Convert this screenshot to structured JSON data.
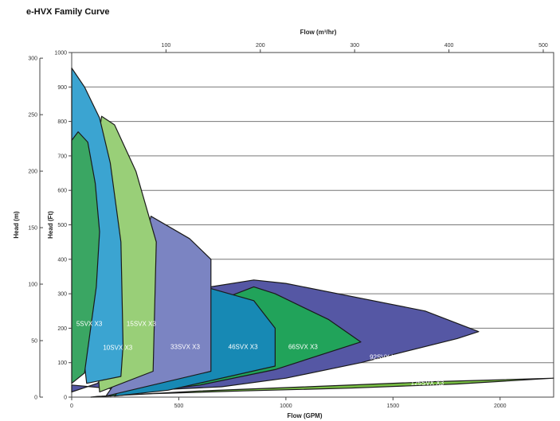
{
  "chart_data": {
    "type": "area",
    "title": "e-HVX Family Curve",
    "xlabel": "Flow (GPM)",
    "x2label": "Flow (m³/hr)",
    "ylabel": "Head (m)",
    "y2label": "Head (Ft)",
    "xlim": [
      0,
      2250
    ],
    "x2lim": [
      0,
      511
    ],
    "ylim_m": [
      0,
      305
    ],
    "ylim_ft": [
      0,
      1000
    ],
    "x_ticks": [
      0,
      500,
      1000,
      1500,
      2000
    ],
    "x2_ticks": [
      100,
      200,
      300,
      400,
      500
    ],
    "y_m_ticks": [
      0,
      50,
      100,
      150,
      200,
      250,
      300
    ],
    "y_ft_ticks": [
      0,
      100,
      200,
      300,
      400,
      500,
      600,
      700,
      800,
      900,
      1000
    ],
    "grid": true,
    "series": [
      {
        "name": "125SVX X3",
        "color": "#78be43",
        "points": [
          [
            120,
            2
          ],
          [
            380,
            10
          ],
          [
            800,
            18
          ],
          [
            1300,
            26
          ],
          [
            1800,
            38
          ],
          [
            2250,
            55
          ],
          [
            1700,
            45
          ],
          [
            1100,
            30
          ],
          [
            600,
            18
          ],
          [
            250,
            6
          ],
          [
            90,
            0
          ]
        ],
        "label_pos": [
          1660,
          40
        ]
      },
      {
        "name": "92SVX X3",
        "color": "#5557a4",
        "points": [
          [
            0,
            35
          ],
          [
            300,
            18
          ],
          [
            700,
            30
          ],
          [
            1000,
            55
          ],
          [
            1350,
            100
          ],
          [
            1800,
            170
          ],
          [
            1900,
            190
          ],
          [
            1650,
            250
          ],
          [
            1000,
            330
          ],
          [
            850,
            340
          ],
          [
            650,
            320
          ],
          [
            450,
            260
          ],
          [
            250,
            120
          ],
          [
            120,
            40
          ],
          [
            0,
            15
          ]
        ],
        "label_pos": [
          1460,
          115
        ]
      },
      {
        "name": "66SVX X3",
        "color": "#21a35a",
        "points": [
          [
            180,
            3
          ],
          [
            600,
            35
          ],
          [
            950,
            80
          ],
          [
            1350,
            160
          ],
          [
            1200,
            225
          ],
          [
            950,
            300
          ],
          [
            850,
            320
          ],
          [
            600,
            260
          ],
          [
            400,
            140
          ],
          [
            230,
            45
          ]
        ],
        "label_pos": [
          1080,
          145
        ]
      },
      {
        "name": "46SVX X3",
        "color": "#1789b4",
        "points": [
          [
            200,
            3
          ],
          [
            450,
            20
          ],
          [
            950,
            90
          ],
          [
            950,
            200
          ],
          [
            850,
            280
          ],
          [
            650,
            315
          ],
          [
            500,
            270
          ],
          [
            330,
            120
          ],
          [
            250,
            40
          ]
        ],
        "label_pos": [
          800,
          145
        ]
      },
      {
        "name": "33SVX X3",
        "color": "#7b84c2",
        "points": [
          [
            160,
            3
          ],
          [
            650,
            75
          ],
          [
            650,
            400
          ],
          [
            550,
            460
          ],
          [
            370,
            525
          ],
          [
            330,
            420
          ],
          [
            250,
            100
          ],
          [
            190,
            30
          ]
        ],
        "label_pos": [
          530,
          145
        ]
      },
      {
        "name": "15SVX X3",
        "color": "#99cf78",
        "points": [
          [
            130,
            15
          ],
          [
            380,
            75
          ],
          [
            395,
            450
          ],
          [
            300,
            655
          ],
          [
            200,
            790
          ],
          [
            140,
            815
          ],
          [
            100,
            650
          ],
          [
            110,
            300
          ],
          [
            120,
            100
          ]
        ],
        "label_pos": [
          325,
          212
        ]
      },
      {
        "name": "10SVX X3",
        "color": "#3ba4d1",
        "points": [
          [
            70,
            40
          ],
          [
            230,
            60
          ],
          [
            240,
            150
          ],
          [
            230,
            450
          ],
          [
            180,
            680
          ],
          [
            130,
            810
          ],
          [
            60,
            900
          ],
          [
            0,
            955
          ],
          [
            0,
            500
          ],
          [
            40,
            200
          ]
        ],
        "label_pos": [
          215,
          142
        ]
      },
      {
        "name": "5SVX X3",
        "color": "#3aa663",
        "points": [
          [
            0,
            40
          ],
          [
            60,
            70
          ],
          [
            115,
            320
          ],
          [
            130,
            480
          ],
          [
            110,
            620
          ],
          [
            75,
            740
          ],
          [
            30,
            770
          ],
          [
            0,
            745
          ]
        ],
        "label_pos": [
          82,
          212
        ]
      }
    ]
  }
}
